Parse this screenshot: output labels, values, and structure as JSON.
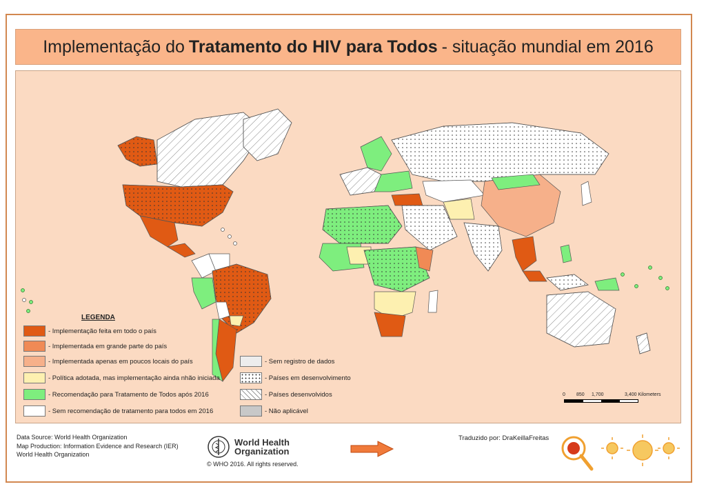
{
  "title": {
    "prefix": "Implementação do",
    "bold": "Tratamento do HIV para Todos",
    "suffix": "- situação mundial em 2016"
  },
  "legend": {
    "title": "LEGENDA",
    "items": [
      {
        "label": "- Implementação feita em todo o país",
        "color": "#e05a14"
      },
      {
        "label": "- Implementada em grande parte do país",
        "color": "#f08a55"
      },
      {
        "label": "- Implementada apenas em poucos locais do país",
        "color": "#f6b08a"
      },
      {
        "label": "- Política adotada, mas implementação ainda nhão iniciada",
        "color": "#fdf0b0"
      },
      {
        "label": "- Recomendação para Tratamento de Todos após 2016",
        "color": "#7eee7e"
      },
      {
        "label": "- Sem recomendação de tratamento para todos em 2016",
        "color": "#ffffff"
      },
      {
        "label": "- Sem registro de dados",
        "color": "#ededed"
      },
      {
        "label": "- Países em desenvolvimento",
        "color": "#ffffff",
        "pattern": "dots"
      },
      {
        "label": "- Países desenvolvidos",
        "color": "#ffffff",
        "pattern": "hatch"
      },
      {
        "label": "- Não aplicável",
        "color": "#c8c8c8"
      }
    ]
  },
  "scale": {
    "ticks": [
      "0",
      "850",
      "1,700",
      "3,400 Kilometers"
    ]
  },
  "footer": {
    "source": "Data Source: World Health Organization",
    "production": "Map Production: Information Evidence and Research (IER)",
    "org": "World Health Organization",
    "who_line1": "World Health",
    "who_line2": "Organization",
    "copyright": "© WHO 2016. All rights reserved.",
    "translated": "Traduzido por: DraKeillaFreitas"
  }
}
